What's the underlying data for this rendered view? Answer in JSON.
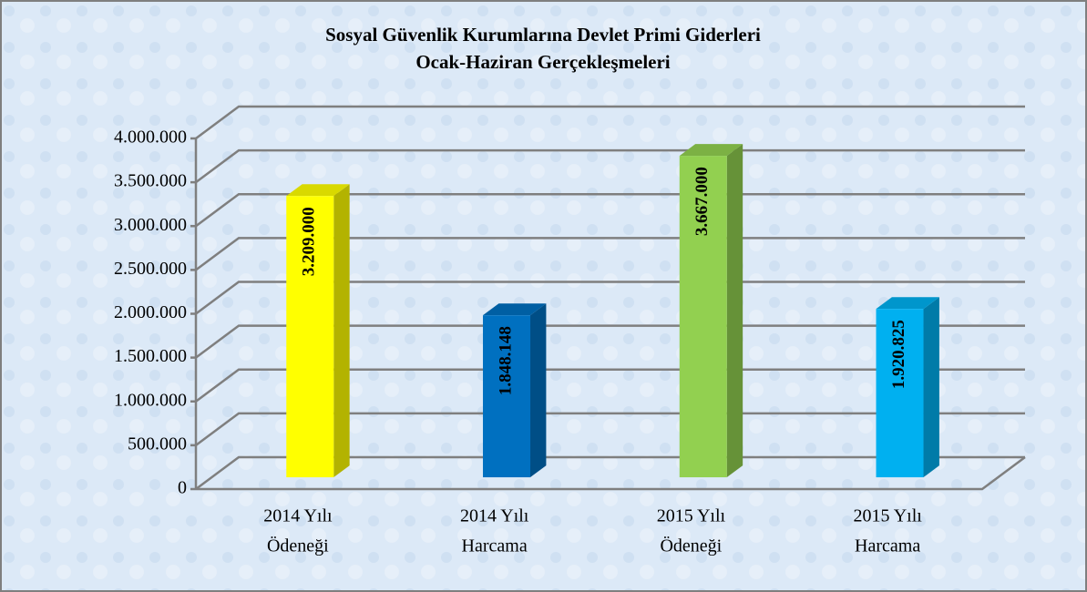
{
  "chart_data": {
    "type": "bar3d",
    "title": "Sosyal Güvenlik Kurumlarına Devlet Primi Giderleri",
    "subtitle": "Ocak-Haziran Gerçekleşmeleri",
    "categories": [
      [
        "2014 Yılı",
        "Ödeneği"
      ],
      [
        "2014 Yılı",
        "Harcama"
      ],
      [
        "2015 Yılı",
        "Ödeneği"
      ],
      [
        "2015 Yılı",
        "Harcama"
      ]
    ],
    "values": [
      3209000,
      1848148,
      3667000,
      1920825
    ],
    "value_labels": [
      "3.209.000",
      "1.848.148",
      "3.667.000",
      "1.920.825"
    ],
    "colors": [
      "#ffff00",
      "#0070c0",
      "#92d050",
      "#00b0f0"
    ],
    "ylim": [
      0,
      4000000
    ],
    "yticks": [
      0,
      {
        "value": 500000,
        "label": "500.000"
      },
      {
        "value": 1000000,
        "label": "1.000.000"
      },
      {
        "value": 1500000,
        "label": "1.500.000"
      },
      {
        "value": 2000000,
        "label": "2.000.000"
      },
      {
        "value": 2500000,
        "label": "2.500.000"
      },
      {
        "value": 3000000,
        "label": "3.000.000"
      },
      {
        "value": 3500000,
        "label": "3.500.000"
      },
      {
        "value": 4000000,
        "label": "4.000.000"
      }
    ],
    "grid": true
  }
}
